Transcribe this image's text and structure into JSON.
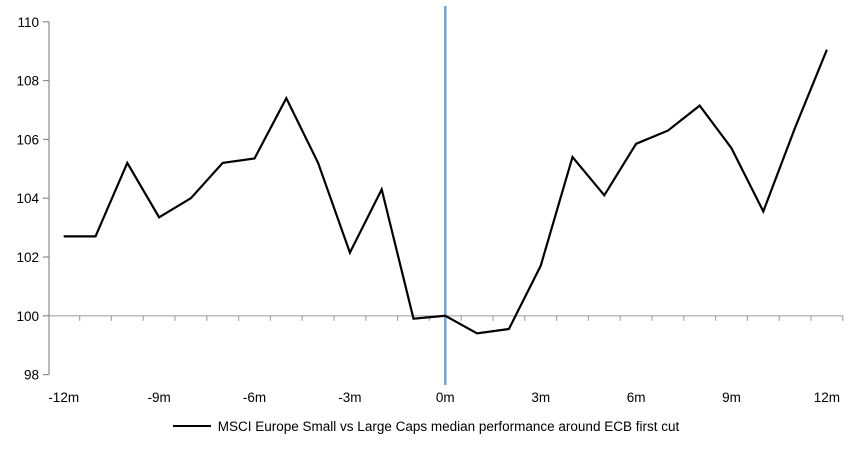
{
  "chart_data": {
    "type": "line",
    "title": "",
    "xlabel": "",
    "ylabel": "",
    "x": [
      -12,
      -11,
      -10,
      -9,
      -8,
      -7,
      -6,
      -5,
      -4,
      -3,
      -2,
      -1,
      0,
      1,
      2,
      3,
      4,
      5,
      6,
      7,
      8,
      9,
      10,
      11,
      12
    ],
    "series": [
      {
        "name": "MSCI Europe Small vs Large Caps median performance around ECB first cut",
        "color": "#000000",
        "values": [
          102.7,
          102.7,
          105.2,
          103.35,
          104.0,
          105.2,
          105.35,
          107.4,
          105.2,
          102.15,
          104.3,
          99.9,
          100.0,
          99.4,
          99.55,
          101.7,
          105.4,
          104.1,
          105.85,
          106.3,
          107.15,
          105.7,
          103.55,
          106.4,
          109.05
        ]
      }
    ],
    "ylim": [
      98,
      110
    ],
    "xlim": [
      -12.5,
      12.5
    ],
    "ytick_values": [
      98,
      100,
      102,
      104,
      106,
      108,
      110
    ],
    "xtick_positions": [
      -12,
      -9,
      -6,
      -3,
      0,
      3,
      6,
      9,
      12
    ],
    "xtick_labels": [
      "-12m",
      "-9m",
      "-6m",
      "-3m",
      "0m",
      "3m",
      "6m",
      "9m",
      "12m"
    ],
    "minor_xticks_every_month": true,
    "baseline_value": 100,
    "event_line_x": 0,
    "grid": "off",
    "legend_position": "bottom-center",
    "colors": {
      "series": "#000000",
      "event_line": "#74A3D1",
      "baseline": "#A6A6A6",
      "axis": "#8C8C8C",
      "text": "#000000"
    }
  }
}
